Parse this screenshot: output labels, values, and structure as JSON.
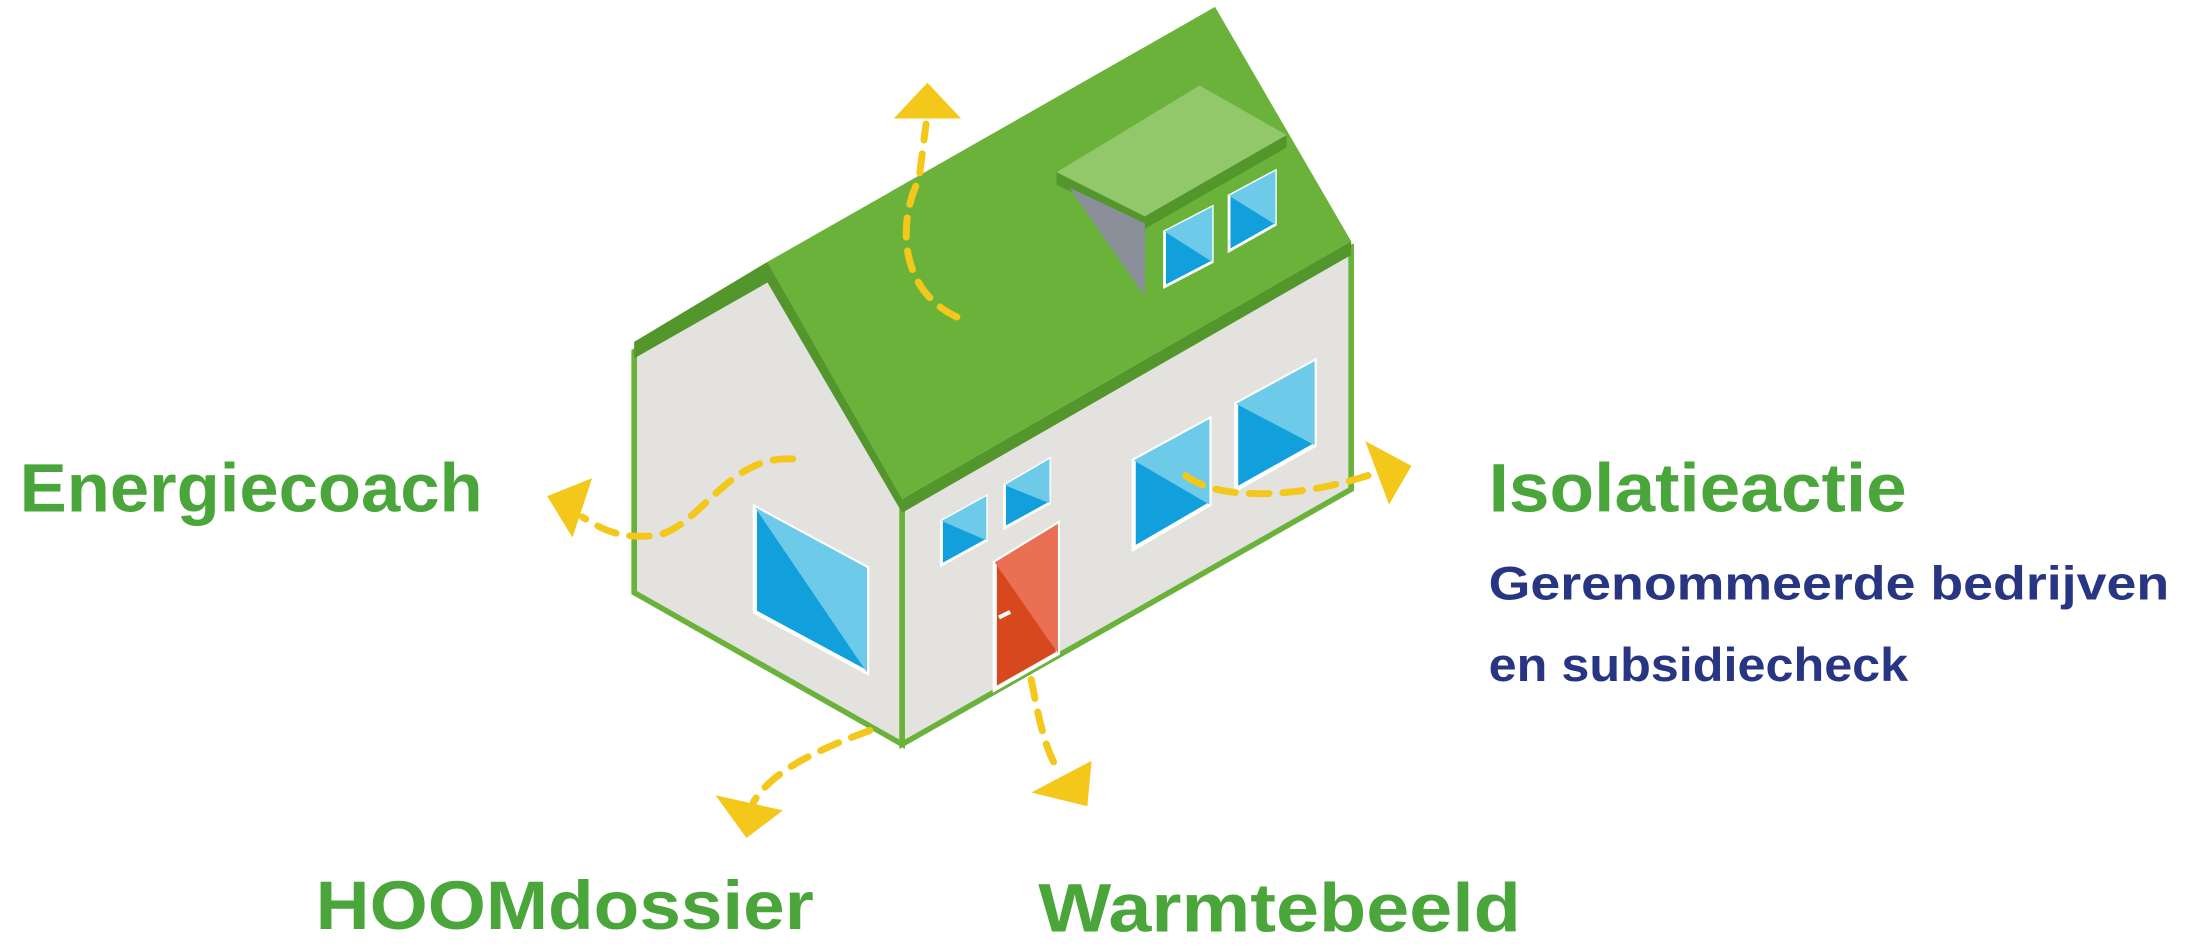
{
  "items": [
    {
      "title": "Energiecoach"
    },
    {
      "title": "Isolatieactie",
      "description": [
        "Gerenommeerde bedrijven",
        "en subsidiecheck"
      ]
    },
    {
      "title": "HOOMdossier"
    },
    {
      "title": "Warmtebeeld"
    }
  ]
}
